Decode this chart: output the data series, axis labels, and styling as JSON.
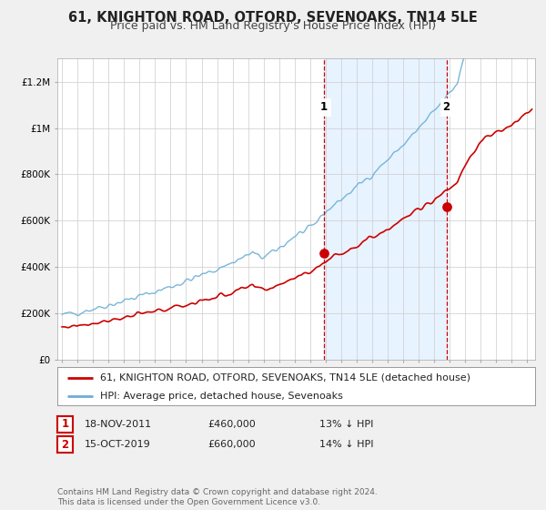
{
  "title": "61, KNIGHTON ROAD, OTFORD, SEVENOAKS, TN14 5LE",
  "subtitle": "Price paid vs. HM Land Registry's House Price Index (HPI)",
  "ylim": [
    0,
    1300000
  ],
  "xlim_start": 1994.7,
  "xlim_end": 2025.5,
  "ytick_labels": [
    "£0",
    "£200K",
    "£400K",
    "£600K",
    "£800K",
    "£1M",
    "£1.2M"
  ],
  "ytick_values": [
    0,
    200000,
    400000,
    600000,
    800000,
    1000000,
    1200000
  ],
  "xtick_values": [
    1995,
    1996,
    1997,
    1998,
    1999,
    2000,
    2001,
    2002,
    2003,
    2004,
    2005,
    2006,
    2007,
    2008,
    2009,
    2010,
    2011,
    2012,
    2013,
    2014,
    2015,
    2016,
    2017,
    2018,
    2019,
    2020,
    2021,
    2022,
    2023,
    2024,
    2025
  ],
  "sale1_date": 2011.88,
  "sale1_value": 460000,
  "sale2_date": 2019.79,
  "sale2_value": 660000,
  "vline1_x": 2011.88,
  "vline2_x": 2019.79,
  "legend_line1": "61, KNIGHTON ROAD, OTFORD, SEVENOAKS, TN14 5LE (detached house)",
  "legend_line2": "HPI: Average price, detached house, Sevenoaks",
  "annotation1_label": "1",
  "annotation1_date": "18-NOV-2011",
  "annotation1_price": "£460,000",
  "annotation1_hpi": "13% ↓ HPI",
  "annotation2_label": "2",
  "annotation2_date": "15-OCT-2019",
  "annotation2_price": "£660,000",
  "annotation2_hpi": "14% ↓ HPI",
  "footer": "Contains HM Land Registry data © Crown copyright and database right 2024.\nThis data is licensed under the Open Government Licence v3.0.",
  "red_color": "#cc0000",
  "blue_color": "#6baed6",
  "vline_color": "#cc0000",
  "bg_color": "#f0f0f0",
  "plot_bg": "#ffffff",
  "shaded_color": "#ddeeff",
  "title_fontsize": 10.5,
  "subtitle_fontsize": 9,
  "tick_fontsize": 7.5,
  "legend_fontsize": 8,
  "annotation_fontsize": 8,
  "footer_fontsize": 6.5
}
